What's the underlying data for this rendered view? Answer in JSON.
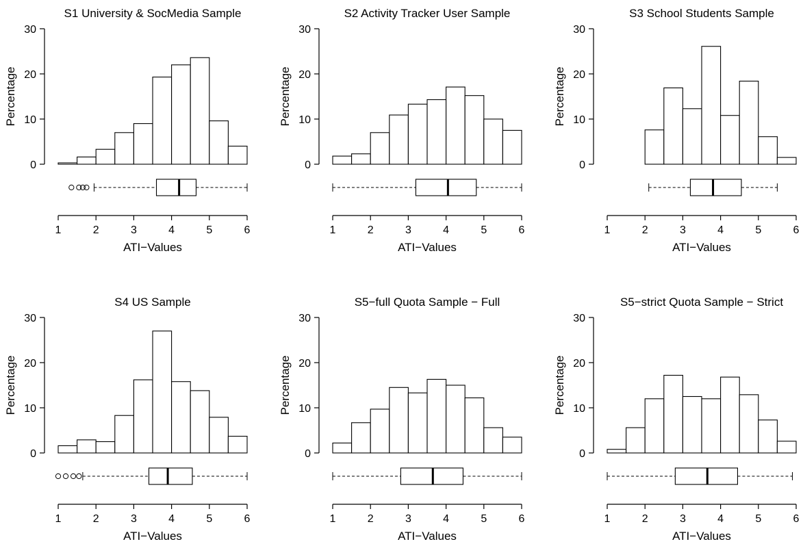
{
  "figure": {
    "ylabel": "Percentage",
    "xlabel": "ATI−Values"
  },
  "chart_data": [
    {
      "type": "bar",
      "title": "S1 University & SocMedia Sample",
      "xlabel": "ATI−Values",
      "ylabel": "Percentage",
      "bin_edges": [
        1,
        1.5,
        2,
        2.5,
        3,
        3.5,
        4,
        4.5,
        5,
        5.5,
        6
      ],
      "values": [
        0.3,
        1.6,
        3.3,
        7.0,
        9.0,
        19.3,
        22.0,
        23.6,
        9.6,
        4.0
      ],
      "ylim": [
        0,
        30
      ],
      "xlim": [
        1,
        6
      ],
      "yticks": [
        "0",
        "10",
        "20",
        "30"
      ],
      "xticks": [
        "1",
        "2",
        "3",
        "4",
        "5",
        "6"
      ],
      "boxplot": {
        "whisker_low": 1.95,
        "q1": 3.6,
        "median": 4.2,
        "q3": 4.65,
        "whisker_high": 6.0,
        "outliers": [
          1.35,
          1.55,
          1.65,
          1.75
        ]
      }
    },
    {
      "type": "bar",
      "title": "S2 Activity Tracker User Sample",
      "xlabel": "ATI−Values",
      "ylabel": "Percentage",
      "bin_edges": [
        1,
        1.5,
        2,
        2.5,
        3,
        3.5,
        4,
        4.5,
        5,
        5.5,
        6
      ],
      "values": [
        1.8,
        2.3,
        7.0,
        10.9,
        13.3,
        14.3,
        17.1,
        15.2,
        10.0,
        7.5
      ],
      "ylim": [
        0,
        30
      ],
      "xlim": [
        1,
        6
      ],
      "yticks": [
        "0",
        "10",
        "20",
        "30"
      ],
      "xticks": [
        "1",
        "2",
        "3",
        "4",
        "5",
        "6"
      ],
      "boxplot": {
        "whisker_low": 1.0,
        "q1": 3.2,
        "median": 4.05,
        "q3": 4.8,
        "whisker_high": 6.0,
        "outliers": []
      }
    },
    {
      "type": "bar",
      "title": "S3 School Students Sample",
      "xlabel": "ATI−Values",
      "ylabel": "Percentage",
      "bin_edges": [
        1,
        1.5,
        2,
        2.5,
        3,
        3.5,
        4,
        4.5,
        5,
        5.5,
        6
      ],
      "values": [
        0,
        0,
        7.6,
        16.9,
        12.3,
        26.1,
        10.8,
        18.4,
        6.1,
        1.5
      ],
      "ylim": [
        0,
        30
      ],
      "xlim": [
        1,
        6
      ],
      "yticks": [
        "0",
        "10",
        "20",
        "30"
      ],
      "xticks": [
        "1",
        "2",
        "3",
        "4",
        "5",
        "6"
      ],
      "boxplot": {
        "whisker_low": 2.1,
        "q1": 3.2,
        "median": 3.8,
        "q3": 4.55,
        "whisker_high": 5.5,
        "outliers": []
      }
    },
    {
      "type": "bar",
      "title": "S4 US Sample",
      "xlabel": "ATI−Values",
      "ylabel": "Percentage",
      "bin_edges": [
        1,
        1.5,
        2,
        2.5,
        3,
        3.5,
        4,
        4.5,
        5,
        5.5,
        6
      ],
      "values": [
        1.6,
        2.9,
        2.5,
        8.3,
        16.2,
        27.0,
        15.8,
        13.8,
        7.9,
        3.7
      ],
      "ylim": [
        0,
        30
      ],
      "xlim": [
        1,
        6
      ],
      "yticks": [
        "0",
        "10",
        "20",
        "30"
      ],
      "xticks": [
        "1",
        "2",
        "3",
        "4",
        "5",
        "6"
      ],
      "boxplot": {
        "whisker_low": 1.65,
        "q1": 3.4,
        "median": 3.9,
        "q3": 4.55,
        "whisker_high": 6.0,
        "outliers": [
          1.0,
          1.2,
          1.4,
          1.55
        ]
      }
    },
    {
      "type": "bar",
      "title": "S5−full Quota Sample − Full",
      "xlabel": "ATI−Values",
      "ylabel": "Percentage",
      "bin_edges": [
        1,
        1.5,
        2,
        2.5,
        3,
        3.5,
        4,
        4.5,
        5,
        5.5,
        6
      ],
      "values": [
        2.2,
        6.7,
        9.7,
        14.5,
        13.3,
        16.3,
        15.0,
        12.2,
        5.6,
        3.5
      ],
      "ylim": [
        0,
        30
      ],
      "xlim": [
        1,
        6
      ],
      "yticks": [
        "0",
        "10",
        "20",
        "30"
      ],
      "xticks": [
        "1",
        "2",
        "3",
        "4",
        "5",
        "6"
      ],
      "boxplot": {
        "whisker_low": 1.0,
        "q1": 2.8,
        "median": 3.65,
        "q3": 4.45,
        "whisker_high": 6.0,
        "outliers": []
      }
    },
    {
      "type": "bar",
      "title": "S5−strict Quota Sample − Strict",
      "xlabel": "ATI−Values",
      "ylabel": "Percentage",
      "bin_edges": [
        1,
        1.5,
        2,
        2.5,
        3,
        3.5,
        4,
        4.5,
        5,
        5.5,
        6
      ],
      "values": [
        0.8,
        5.6,
        12.0,
        17.2,
        12.5,
        12.0,
        16.8,
        12.9,
        7.3,
        2.6
      ],
      "ylim": [
        0,
        30
      ],
      "xlim": [
        1,
        6
      ],
      "yticks": [
        "0",
        "10",
        "20",
        "30"
      ],
      "xticks": [
        "1",
        "2",
        "3",
        "4",
        "5",
        "6"
      ],
      "boxplot": {
        "whisker_low": 1.0,
        "q1": 2.8,
        "median": 3.65,
        "q3": 4.45,
        "whisker_high": 5.9,
        "outliers": []
      }
    }
  ]
}
